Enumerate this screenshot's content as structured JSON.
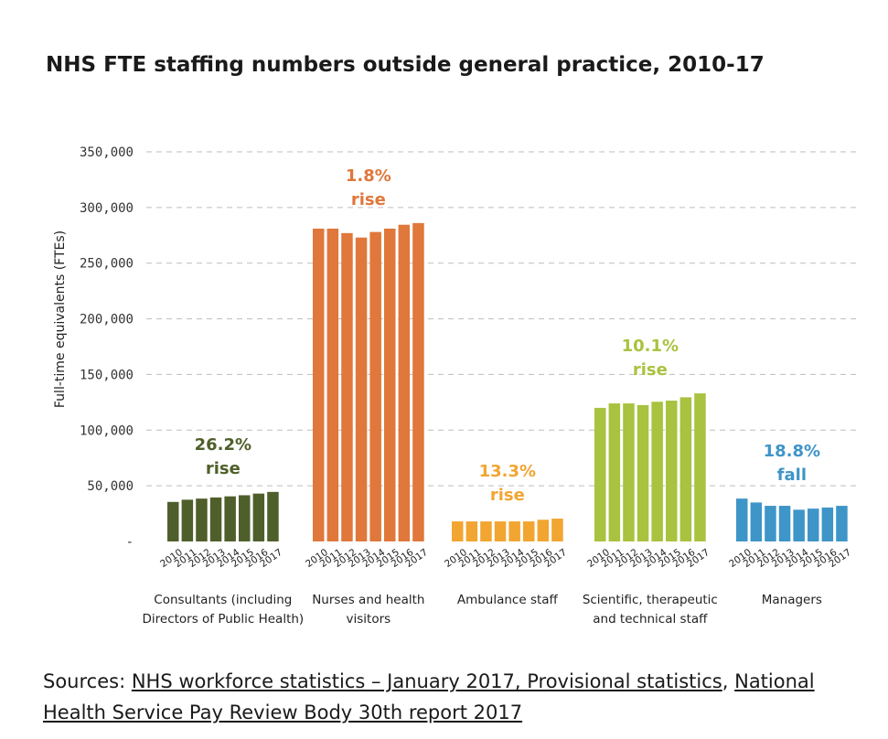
{
  "chart_data": {
    "type": "bar",
    "title": "NHS FTE staffing numbers outside general practice, 2010-17",
    "ylabel": "Full-time equivalents (FTEs)",
    "xlabel": "",
    "ylim": [
      0,
      350000
    ],
    "yticks": [
      0,
      50000,
      100000,
      150000,
      200000,
      250000,
      300000,
      350000
    ],
    "ytick_labels": [
      "-",
      "50,000",
      "100,000",
      "150,000",
      "200,000",
      "250,000",
      "300,000",
      "350,000"
    ],
    "grid": true,
    "years": [
      "2010",
      "2011",
      "2012",
      "2013",
      "2014",
      "2015",
      "2016",
      "2017"
    ],
    "groups": [
      {
        "label_lines": [
          "Consultants (including",
          "Directors of Public Health)"
        ],
        "color": "#4f5f2b",
        "annotation_lines": [
          "26.2%",
          "rise"
        ],
        "annotation_color": "#4f5f2b",
        "values": [
          35500,
          37500,
          38500,
          39500,
          40500,
          41500,
          43000,
          44500
        ]
      },
      {
        "label_lines": [
          "Nurses and health",
          "visitors"
        ],
        "color": "#e0773b",
        "annotation_lines": [
          "1.8%",
          "rise"
        ],
        "annotation_color": "#e0773b",
        "values": [
          281000,
          281000,
          277000,
          273000,
          278000,
          281000,
          284500,
          286000
        ]
      },
      {
        "label_lines": [
          "Ambulance staff"
        ],
        "color": "#f2a531",
        "annotation_lines": [
          "13.3%",
          "rise"
        ],
        "annotation_color": "#f2a531",
        "values": [
          18000,
          18000,
          18000,
          18000,
          18000,
          18000,
          19500,
          20500
        ]
      },
      {
        "label_lines": [
          "Scientific, therapeutic",
          "and technical staff"
        ],
        "color": "#a9c23f",
        "annotation_lines": [
          "10.1%",
          "rise"
        ],
        "annotation_color": "#a9c23f",
        "values": [
          120000,
          124000,
          124000,
          122500,
          125500,
          126500,
          129500,
          133000
        ]
      },
      {
        "label_lines": [
          "Managers"
        ],
        "color": "#3e95c8",
        "annotation_lines": [
          "18.8%",
          "fall"
        ],
        "annotation_color": "#3e95c8",
        "values": [
          38500,
          35000,
          32000,
          32000,
          28500,
          29500,
          30500,
          32000
        ]
      }
    ]
  },
  "sources": {
    "prefix": "Sources: ",
    "link1": "NHS workforce statistics – January 2017, Provisional statistics",
    "separator": ", ",
    "link2": "National Health Service Pay Review Body 30th report 2017"
  }
}
